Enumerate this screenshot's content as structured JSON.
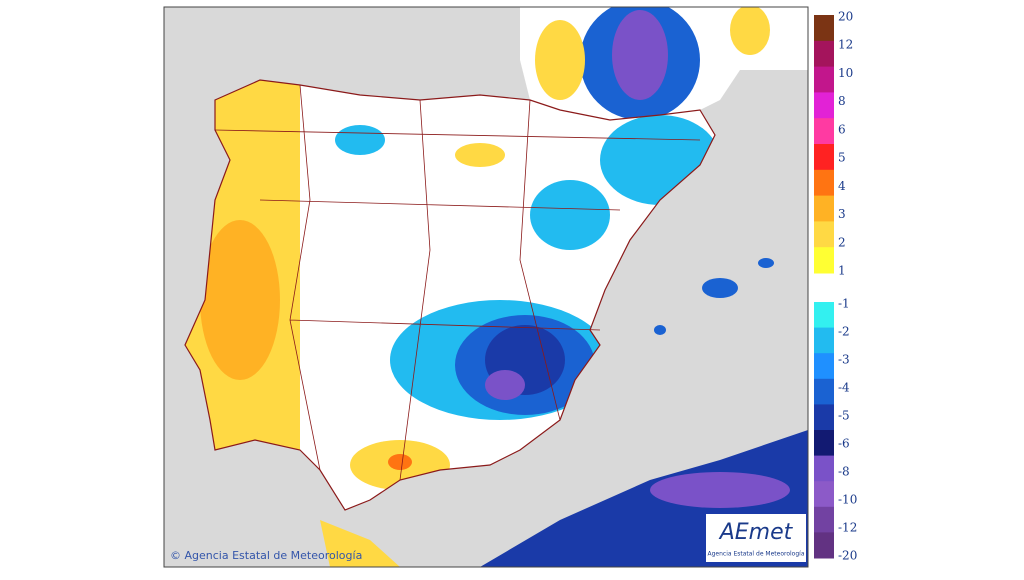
{
  "map": {
    "copyright": "© Agencia Estatal de Meteorología",
    "logo": {
      "name": "AEmet",
      "subtitle": "Agencia Estatal de Meteorología"
    },
    "legend": {
      "upper": [
        {
          "value": 20,
          "color": "#7b3414"
        },
        {
          "value": 12,
          "color": "#a4145c"
        },
        {
          "value": 10,
          "color": "#c2168c"
        },
        {
          "value": 8,
          "color": "#e222d6"
        },
        {
          "value": 6,
          "color": "#ff3aa2"
        },
        {
          "value": 5,
          "color": "#ff2222"
        },
        {
          "value": 4,
          "color": "#ff7412"
        },
        {
          "value": 3,
          "color": "#ffb224"
        },
        {
          "value": 2,
          "color": "#ffd944"
        },
        {
          "value": 1,
          "color": "#ffff33"
        }
      ],
      "lower": [
        {
          "value": -1,
          "color": "#33f0f0"
        },
        {
          "value": -2,
          "color": "#22bbf0"
        },
        {
          "value": -3,
          "color": "#1f90ff"
        },
        {
          "value": -4,
          "color": "#1a62d2"
        },
        {
          "value": -5,
          "color": "#1a3aa8"
        },
        {
          "value": -6,
          "color": "#121a72"
        },
        {
          "value": -8,
          "color": "#7a52c8"
        },
        {
          "value": -10,
          "color": "#8c5ac8"
        },
        {
          "value": -12,
          "color": "#7242a2"
        },
        {
          "value": -20,
          "color": "#623282"
        }
      ]
    }
  }
}
